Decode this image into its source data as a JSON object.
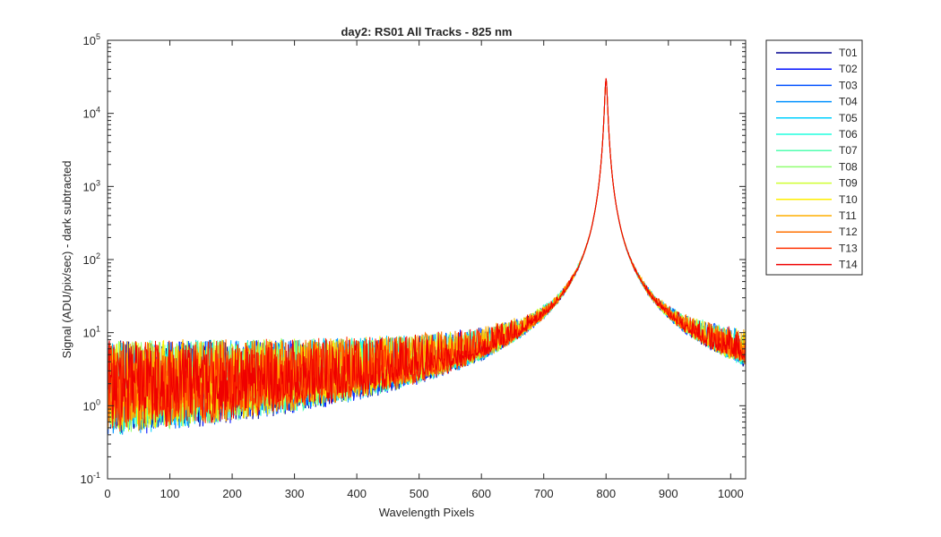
{
  "chart_data": {
    "type": "line",
    "title": "day2: RS01  All Tracks - 825 nm",
    "xlabel": "Wavelength Pixels",
    "ylabel": "Signal (ADU/pix/sec) - dark subtracted",
    "xlim": [
      0,
      1024
    ],
    "ylim": [
      0.1,
      100000
    ],
    "yscale": "log",
    "grid": false,
    "legend_position": "outside-top-right",
    "x_ticks": [
      0,
      100,
      200,
      300,
      400,
      500,
      600,
      700,
      800,
      900,
      1000
    ],
    "x_tick_labels": [
      "0",
      "100",
      "200",
      "300",
      "400",
      "500",
      "600",
      "700",
      "800",
      "900",
      "1000"
    ],
    "y_ticks": [
      0.1,
      1,
      10,
      100,
      1000,
      10000,
      100000
    ],
    "y_tick_labels": [
      {
        "base": "10",
        "exp": "-1"
      },
      {
        "base": "10",
        "exp": "0"
      },
      {
        "base": "10",
        "exp": "1"
      },
      {
        "base": "10",
        "exp": "2"
      },
      {
        "base": "10",
        "exp": "3"
      },
      {
        "base": "10",
        "exp": "4"
      },
      {
        "base": "10",
        "exp": "5"
      }
    ],
    "peak": {
      "x": 800,
      "y": 30000
    },
    "baseline_level": 1.5,
    "series": [
      {
        "name": "T01",
        "color": "#00008f"
      },
      {
        "name": "T02",
        "color": "#0010ff"
      },
      {
        "name": "T03",
        "color": "#0050ff"
      },
      {
        "name": "T04",
        "color": "#0090ff"
      },
      {
        "name": "T05",
        "color": "#00d0ff"
      },
      {
        "name": "T06",
        "color": "#20ffdf"
      },
      {
        "name": "T07",
        "color": "#50ffaf"
      },
      {
        "name": "T08",
        "color": "#90ff70"
      },
      {
        "name": "T09",
        "color": "#cfff30"
      },
      {
        "name": "T10",
        "color": "#ffef00"
      },
      {
        "name": "T11",
        "color": "#ffaf00"
      },
      {
        "name": "T12",
        "color": "#ff7000"
      },
      {
        "name": "T13",
        "color": "#ff3000"
      },
      {
        "name": "T14",
        "color": "#ef0000"
      }
    ]
  }
}
